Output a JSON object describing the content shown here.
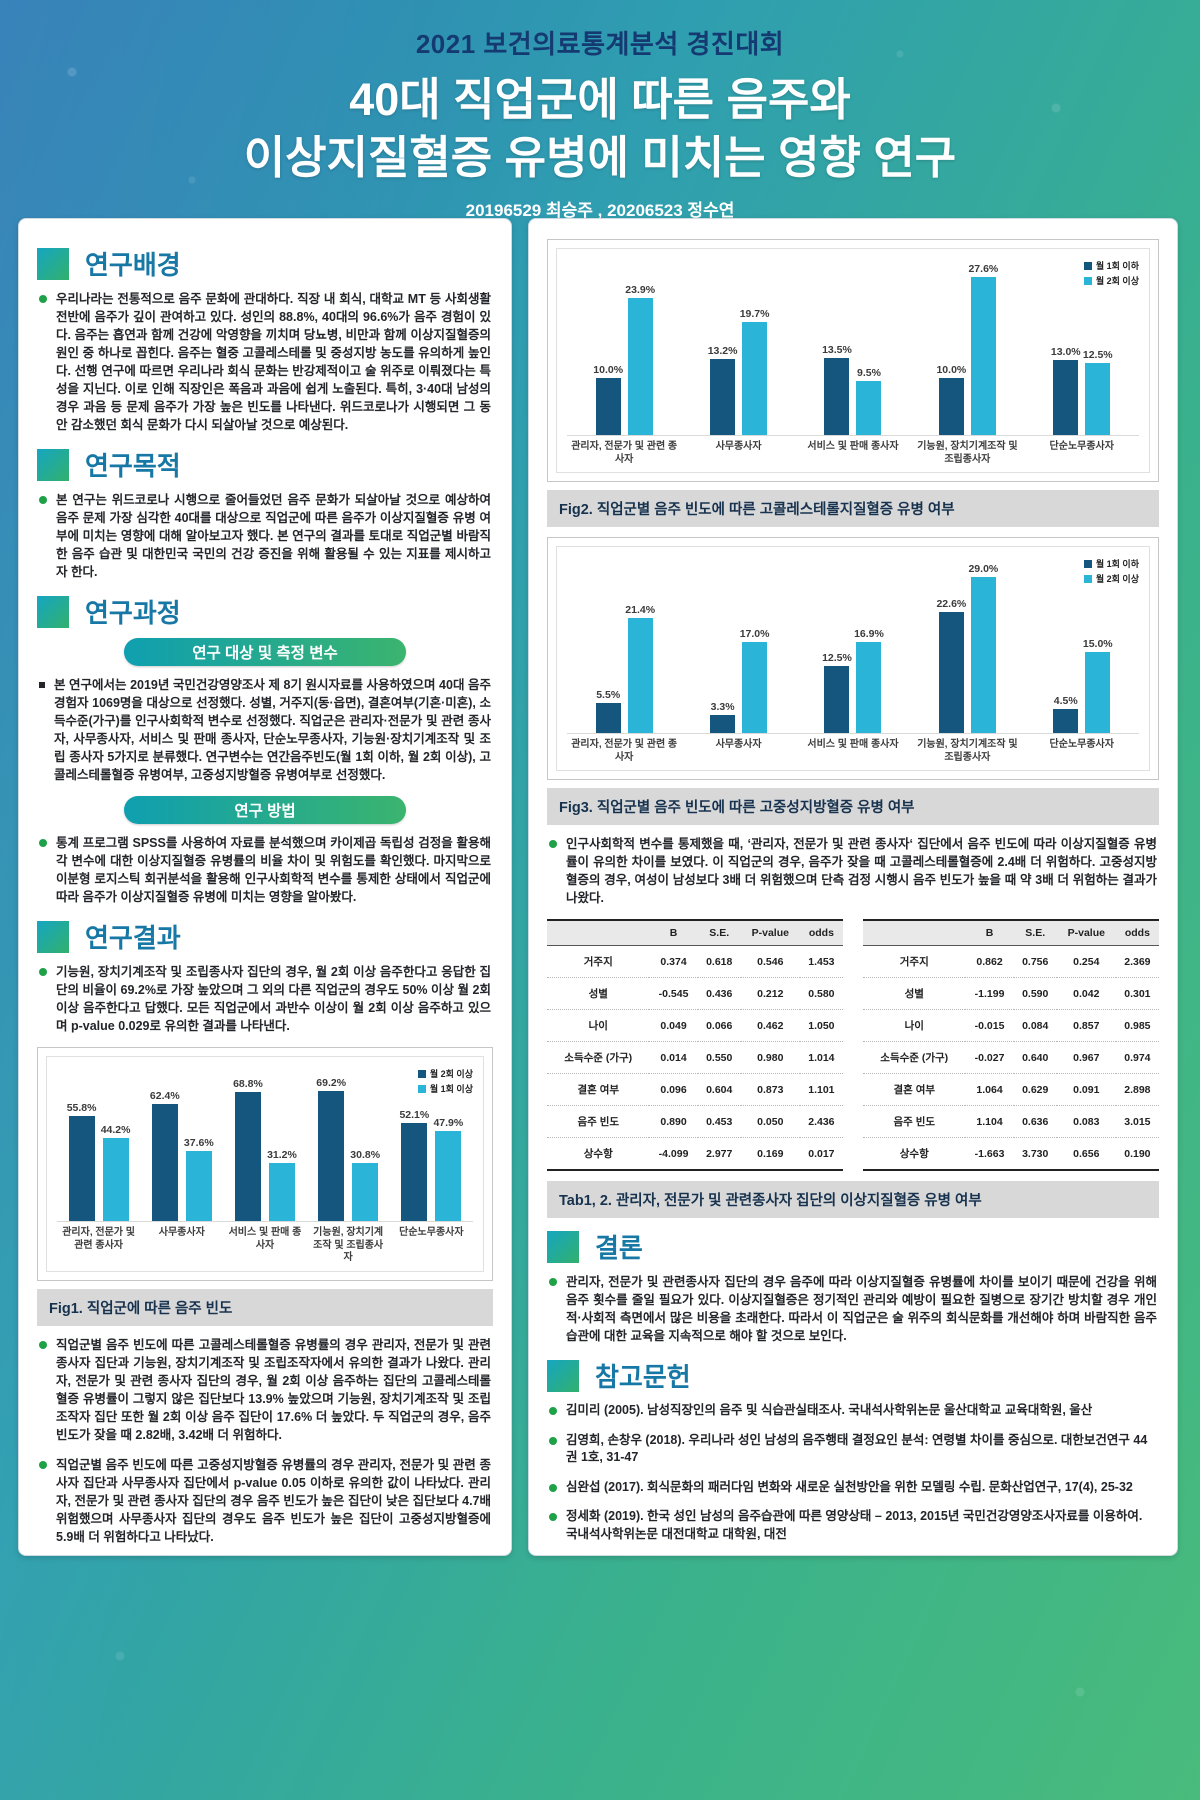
{
  "header": {
    "competition": "2021 보건의료통계분석 경진대회",
    "title_line1": "40대 직업군에 따른 음주와",
    "title_line2": "이상지질혈증 유병에 미치는 영향 연구",
    "authors": "20196529 최승주 , 20206523 정수연"
  },
  "left": {
    "background": {
      "heading": "연구배경",
      "text": "우리나라는 전통적으로 음주 문화에 관대하다. 직장 내 회식, 대학교 MT 등 사회생활 전반에 음주가 깊이 관여하고 있다. 성인의 88.8%, 40대의 96.6%가 음주 경험이 있다. 음주는 흡연과 함께 건강에 악영향을 끼치며 당뇨병, 비만과 함께 이상지질혈증의 원인 중 하나로 꼽힌다. 음주는 혈중 고콜레스테롤 및 중성지방 농도를 유의하게 높인다. 선행 연구에 따르면 우리나라 회식 문화는 반강제적이고 술 위주로 이뤄졌다는 특성을 지닌다. 이로 인해 직장인은 폭음과 과음에 쉽게 노출된다. 특히, 3·40대 남성의 경우 과음 등 문제 음주가 가장 높은 빈도를 나타낸다. 위드코로나가 시행되면 그 동안 감소했던 회식 문화가 다시 되살아날 것으로 예상된다."
    },
    "purpose": {
      "heading": "연구목적",
      "text": "본 연구는 위드코로나 시행으로 줄어들었던 음주 문화가 되살아날 것으로 예상하여 음주 문제 가장 심각한 40대를 대상으로 직업군에 따른 음주가 이상지질혈증 유병 여부에 미치는 영향에 대해 알아보고자 했다. 본 연구의 결과를 토대로 직업군별 바람직한 음주 습관 및 대한민국 국민의 건강 증진을 위해 활용될 수 있는 지표를 제시하고자 한다."
    },
    "process": {
      "heading": "연구과정",
      "pill1": "연구 대상 및 측정 변수",
      "text1": "본 연구에서는 2019년 국민건강영양조사 제 8기 원시자료를 사용하였으며 40대 음주 경험자 1069명을 대상으로 선정했다. 성별, 거주지(동·읍면), 결혼여부(기혼·미혼), 소득수준(가구)를 인구사회학적 변수로 선정했다. 직업군은 관리자·전문가 및 관련 종사자, 사무종사자, 서비스 및 판매 종사자, 단순노무종사자, 기능원·장치기계조작 및 조립 종사자 5가지로 분류했다. 연구변수는 연간음주빈도(월 1회 이하, 월 2회 이상), 고콜레스테롤혈증 유병여부, 고중성지방혈증 유병여부로 선정했다.",
      "pill2": "연구 방법",
      "text2": "통계 프로그램 SPSS를 사용하여 자료를 분석했으며 카이제곱 독립성 검정을 활용해 각 변수에 대한 이상지질혈증 유병률의 비율 차이 및 위험도를 확인했다. 마지막으로 이분형 로지스틱 회귀분석을 활용해 인구사회학적 변수를 통제한 상태에서 직업군에 따라 음주가 이상지질혈증 유병에 미치는 영향을 알아봤다."
    },
    "results": {
      "heading": "연구결과",
      "text": "기능원, 장치기계조작 및 조립종사자 집단의 경우, 월 2회 이상 음주한다고 응답한 집단의 비율이 69.2%로 가장 높았으며 그 외의 다른 직업군의 경우도 50% 이상 월 2회 이상 음주한다고 답했다. 모든 직업군에서 과반수 이상이 월 2회 이상 음주하고 있으며 p-value 0.029로 유의한 결과를 나타낸다."
    },
    "bottom_bullets": [
      "직업군별 음주 빈도에 따른 고콜레스테롤혈증 유병률의 경우 관리자, 전문가 및 관련 종사자 집단과 기능원, 장치기계조작 및 조립조작자에서 유의한 결과가 나왔다. 관리자, 전문가 및 관련 종사자 집단의 경우, 월 2회 이상 음주하는 집단의 고콜레스테롤혈증 유병률이 그렇지 않은 집단보다 13.9% 높았으며 기능원, 장치기계조작 및 조립조작자 집단 또한 월 2회 이상 음주 집단이 17.6% 더 높았다.  두 직업군의 경우, 음주빈도가 잦을 때 2.82배, 3.42배 더 위험하다.",
      "직업군별 음주 빈도에 따른 고중성지방혈증 유병률의 경우 관리자, 전문가 및 관련 종사자 집단과 사무종사자 집단에서 p-value 0.05 이하로 유의한 값이 나타났다. 관리자, 전문가 및 관련 종사자 집단의 경우 음주 빈도가 높은 집단이 낮은 집단보다 4.7배 위험했으며 사무종사자 집단의 경우도 음주 빈도가 높은 집단이 고중성지방혈증에 5.9배 더 위험하다고 나타났다."
    ]
  },
  "right": {
    "analysis_text": "인구사회학적 변수를 통제했을 때, ‘관리자, 전문가 및 관련 종사자‘ 집단에서 음주 빈도에 따라 이상지질혈증 유병률이 유의한 차이를 보였다. 이 직업군의 경우, 음주가 잦을 때 고콜레스테롤혈증에 2.4배 더 위험하다. 고중성지방혈증의 경우, 여성이 남성보다 3배 더 위험했으며 단측 검정 시행시 음주 빈도가 높을 때 약 3배 더 위험하는 결과가 나왔다.",
    "tables": {
      "columns": [
        "",
        "B",
        "S.E.",
        "P-value",
        "odds"
      ],
      "table1_rows": [
        [
          "거주지",
          "0.374",
          "0.618",
          "0.546",
          "1.453"
        ],
        [
          "성별",
          "-0.545",
          "0.436",
          "0.212",
          "0.580"
        ],
        [
          "나이",
          "0.049",
          "0.066",
          "0.462",
          "1.050"
        ],
        [
          "소득수준 (가구)",
          "0.014",
          "0.550",
          "0.980",
          "1.014"
        ],
        [
          "결혼 여부",
          "0.096",
          "0.604",
          "0.873",
          "1.101"
        ],
        [
          "음주 빈도",
          "0.890",
          "0.453",
          "0.050",
          "2.436"
        ],
        [
          "상수항",
          "-4.099",
          "2.977",
          "0.169",
          "0.017"
        ]
      ],
      "table2_rows": [
        [
          "거주지",
          "0.862",
          "0.756",
          "0.254",
          "2.369"
        ],
        [
          "성별",
          "-1.199",
          "0.590",
          "0.042",
          "0.301"
        ],
        [
          "나이",
          "-0.015",
          "0.084",
          "0.857",
          "0.985"
        ],
        [
          "소득수준 (가구)",
          "-0.027",
          "0.640",
          "0.967",
          "0.974"
        ],
        [
          "결혼 여부",
          "1.064",
          "0.629",
          "0.091",
          "2.898"
        ],
        [
          "음주 빈도",
          "1.104",
          "0.636",
          "0.083",
          "3.015"
        ],
        [
          "상수항",
          "-1.663",
          "3.730",
          "0.656",
          "0.190"
        ]
      ],
      "caption": "Tab1, 2. 관리자, 전문가 및 관련종사자 집단의 이상지질혈증 유병 여부"
    },
    "conclusion": {
      "heading": "결론",
      "text": "관리자, 전문가 및 관련종사자 집단의 경우 음주에 따라 이상지질혈증 유병률에 차이를 보이기 때문에 건강을 위해 음주 횟수를 줄일 필요가 있다. 이상지질혈증은 정기적인 관리와 예방이 필요한 질병으로 장기간 방치할 경우 개인적·사회적 측면에서 많은 비용을 초래한다. 따라서 이 직업군은 술 위주의 회식문화를 개선해야 하며 바람직한 음주 습관에 대한 교육을 지속적으로 해야 할 것으로 보인다."
    },
    "references": {
      "heading": "참고문헌",
      "items": [
        "김미리 (2005). 남성직장인의 음주 및 식습관실태조사. 국내석사학위논문 울산대학교 교육대학원, 울산",
        "김영희, 손창우 (2018). 우리나라 성인 남성의 음주행태 결정요인 분석: 연령별 차이를 중심으로. 대한보건연구 44권 1호, 31-47",
        "심완섭 (2017). 회식문화의 패러다임 변화와 새로운 실천방안을 위한 모델링 수립. 문화산업연구, 17(4), 25-32",
        "정세화 (2019). 한국 성인 남성의 음주습관에 따른 영양상태 – 2013, 2015년 국민건강영양조사자료를 이용하여. 국내석사학위논문 대전대학교 대학원, 대전"
      ]
    }
  },
  "chart_data": [
    {
      "name": "fig1",
      "type": "bar",
      "caption": "Fig1. 직업군에 따른 음주 빈도",
      "categories": [
        "관리자, 전문가 및 관련 종사자",
        "사무종사자",
        "서비스 및 판매 종사자",
        "기능원, 장치기계조작 및 조립종사자",
        "단순노무종사자"
      ],
      "series": [
        {
          "name": "월 2회 이상",
          "color": "#14567e",
          "values": [
            55.8,
            62.4,
            68.8,
            69.2,
            52.1
          ]
        },
        {
          "name": "월 1회 이상",
          "color": "#2ab4d8",
          "values": [
            44.2,
            37.6,
            31.2,
            30.8,
            47.9
          ]
        }
      ],
      "ymax": 80,
      "unit": "%",
      "legend_position": "top-right",
      "grid": false
    },
    {
      "name": "fig2",
      "type": "bar",
      "caption": "Fig2. 직업군별 음주 빈도에 따른 고콜레스테롤지질혈증 유병 여부",
      "categories": [
        "관리자, 전문가 및 관련 종사자",
        "사무종사자",
        "서비스 및 판매 종사자",
        "기능원, 장치기계조작 및 조립종사자",
        "단순노무종사자"
      ],
      "series": [
        {
          "name": "월 1회 이하",
          "color": "#14567e",
          "values": [
            10.0,
            13.2,
            13.5,
            10.0,
            13.0
          ]
        },
        {
          "name": "월 2회 이상",
          "color": "#2ab4d8",
          "values": [
            23.9,
            19.7,
            9.5,
            27.6,
            12.5
          ]
        }
      ],
      "ymax": 30,
      "unit": "%",
      "legend_position": "top-right",
      "grid": false
    },
    {
      "name": "fig3",
      "type": "bar",
      "caption": "Fig3. 직업군별 음주 빈도에 따른 고중성지방혈증 유병 여부",
      "categories": [
        "관리자, 전문가 및 관련 종사자",
        "사무종사자",
        "서비스 및 판매 종사자",
        "기능원, 장치기계조작 및 조립종사자",
        "단순노무종사자"
      ],
      "series": [
        {
          "name": "월 1회 이하",
          "color": "#14567e",
          "values": [
            5.5,
            3.3,
            12.5,
            22.6,
            4.5
          ]
        },
        {
          "name": "월 2회 이상",
          "color": "#2ab4d8",
          "values": [
            21.4,
            17.0,
            16.9,
            29.0,
            15.0
          ]
        }
      ],
      "ymax": 32,
      "unit": "%",
      "legend_position": "top-right",
      "grid": false
    }
  ],
  "colors": {
    "accent_heading": "#1878a5",
    "bullet_green": "#1fa148",
    "bar_dark": "#14567e",
    "bar_cyan": "#2ab4d8",
    "caption_bg": "#d8d8d8",
    "header_navy": "#153a72"
  }
}
